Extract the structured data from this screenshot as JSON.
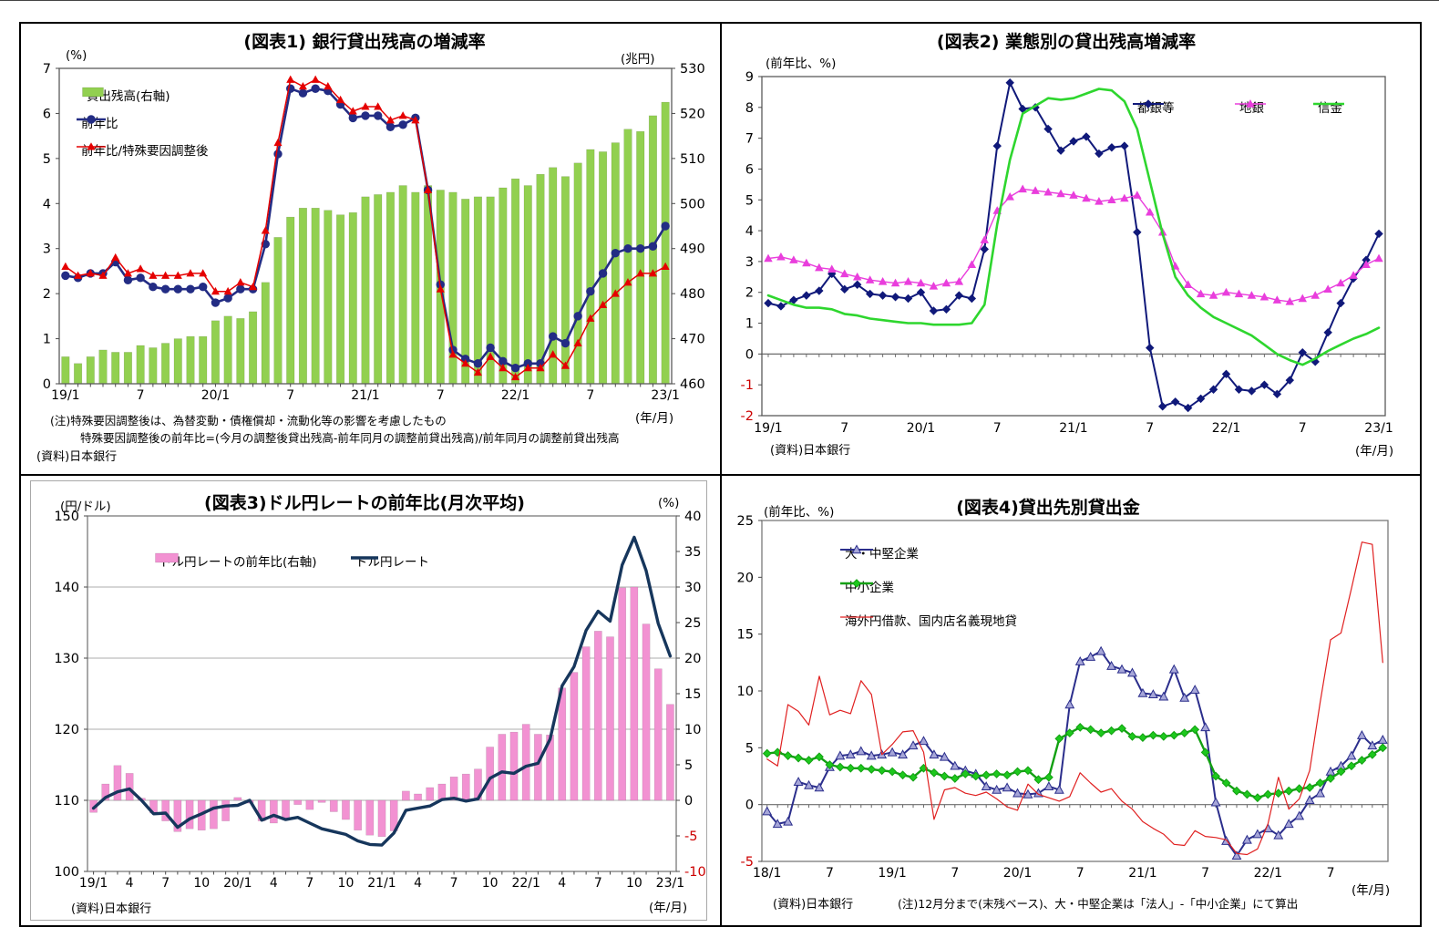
{
  "source_label": "(資料)日本銀行",
  "x_unit_label": "(年/月)",
  "colors": {
    "negative_tick": "#CC0000",
    "frame": "#6A6A6A",
    "gridline": "#ADADAD"
  },
  "chart_data": [
    {
      "id": "fig1",
      "type": "bar+line",
      "title": "(図表1) 銀行貸出残高の増減率",
      "unit_left": "(%)",
      "unit_right": "(兆円)",
      "x_unit": "(年/月)",
      "source": "(資料)日本銀行",
      "notes": [
        "(注)特殊要因調整後は、為替変動・債権償却・流動化等の影響を考慮したもの",
        "特殊要因調整後の前年比=(今月の調整後貸出残高-前年同月の調整前貸出残高)/前年同月の調整前貸出残高"
      ],
      "axis_left": {
        "min": 0,
        "max": 7,
        "step": 1
      },
      "axis_right": {
        "min": 460,
        "max": 530,
        "step": 10
      },
      "x_ticks": [
        {
          "i": 0,
          "label": "19/1"
        },
        {
          "i": 6,
          "label": "7"
        },
        {
          "i": 12,
          "label": "20/1"
        },
        {
          "i": 18,
          "label": "7"
        },
        {
          "i": 24,
          "label": "21/1"
        },
        {
          "i": 30,
          "label": "7"
        },
        {
          "i": 36,
          "label": "22/1"
        },
        {
          "i": 42,
          "label": "7"
        },
        {
          "i": 48,
          "label": "23/1"
        }
      ],
      "bars": {
        "name": "貸出残高(右軸)",
        "color": "#92D050",
        "axis": "right",
        "values": [
          466,
          464.5,
          466,
          467.5,
          467,
          467,
          468.5,
          468,
          469,
          470,
          470.5,
          470.5,
          474,
          475,
          474.5,
          476,
          482.5,
          492.5,
          497,
          499,
          499,
          498.5,
          497.5,
          498,
          501.5,
          502,
          502.5,
          504,
          502.5,
          504,
          503,
          502.5,
          501,
          501.5,
          501.5,
          503.5,
          505.5,
          504,
          506.5,
          508,
          506,
          509,
          512,
          511.5,
          513.5,
          516.5,
          516,
          519.5,
          522.5
        ]
      },
      "series": [
        {
          "name": "前年比",
          "color": "#232C84",
          "marker": "circle",
          "lw": 2.6,
          "msize": 4.2,
          "axis": "left",
          "values": [
            2.4,
            2.35,
            2.45,
            2.45,
            2.7,
            2.3,
            2.35,
            2.15,
            2.1,
            2.1,
            2.1,
            2.15,
            1.8,
            1.9,
            2.1,
            2.1,
            3.1,
            5.1,
            6.55,
            6.45,
            6.55,
            6.5,
            6.2,
            5.9,
            5.95,
            5.95,
            5.7,
            5.75,
            5.9,
            4.3,
            2.2,
            0.75,
            0.55,
            0.45,
            0.8,
            0.5,
            0.35,
            0.45,
            0.45,
            1.05,
            0.9,
            1.5,
            2.05,
            2.45,
            2.9,
            3.0,
            3.0,
            3.05,
            3.5
          ]
        },
        {
          "name": "前年比/特殊要因調整後",
          "color": "#E50000",
          "marker": "triangle",
          "lw": 1.5,
          "msize": 3.7,
          "axis": "left",
          "values": [
            2.6,
            2.4,
            2.45,
            2.4,
            2.8,
            2.45,
            2.55,
            2.4,
            2.4,
            2.4,
            2.45,
            2.45,
            2.05,
            2.05,
            2.25,
            2.15,
            3.4,
            5.35,
            6.75,
            6.6,
            6.75,
            6.6,
            6.3,
            6.05,
            6.15,
            6.15,
            5.85,
            5.95,
            5.85,
            4.3,
            2.1,
            0.65,
            0.45,
            0.25,
            0.6,
            0.35,
            0.15,
            0.35,
            0.35,
            0.65,
            0.4,
            0.9,
            1.45,
            1.75,
            2.0,
            2.25,
            2.45,
            2.45,
            2.6
          ]
        }
      ]
    },
    {
      "id": "fig2",
      "type": "line",
      "title": "(図表2) 業態別の貸出残高増減率",
      "unit_left": "(前年比、%)",
      "x_unit": "(年/月)",
      "source": "(資料)日本銀行",
      "axis_left": {
        "min": -2,
        "max": 9,
        "step": 1
      },
      "zero_line": true,
      "x_ticks": [
        {
          "i": 0,
          "label": "19/1"
        },
        {
          "i": 6,
          "label": "7"
        },
        {
          "i": 12,
          "label": "20/1"
        },
        {
          "i": 18,
          "label": "7"
        },
        {
          "i": 24,
          "label": "21/1"
        },
        {
          "i": 30,
          "label": "7"
        },
        {
          "i": 36,
          "label": "22/1"
        },
        {
          "i": 42,
          "label": "7"
        },
        {
          "i": 48,
          "label": "23/1"
        }
      ],
      "series": [
        {
          "name": "都銀等",
          "color": "#10197A",
          "marker": "diamond",
          "lw": 2.0,
          "msize": 4.0,
          "axis": "left",
          "values": [
            1.65,
            1.55,
            1.75,
            1.9,
            2.05,
            2.6,
            2.1,
            2.25,
            1.95,
            1.9,
            1.85,
            1.8,
            2.0,
            1.4,
            1.45,
            1.9,
            1.8,
            3.4,
            6.75,
            8.8,
            7.95,
            8.0,
            7.3,
            6.6,
            6.9,
            7.05,
            6.5,
            6.7,
            6.75,
            3.95,
            0.2,
            -1.7,
            -1.55,
            -1.75,
            -1.45,
            -1.15,
            -0.65,
            -1.15,
            -1.2,
            -1.0,
            -1.3,
            -0.85,
            0.05,
            -0.25,
            0.7,
            1.65,
            2.45,
            3.05,
            3.9
          ]
        },
        {
          "name": "地銀",
          "color": "#E93EDC",
          "marker": "triangle",
          "lw": 1.4,
          "msize": 3.9,
          "axis": "left",
          "values": [
            3.1,
            3.15,
            3.05,
            2.95,
            2.8,
            2.75,
            2.6,
            2.5,
            2.4,
            2.35,
            2.3,
            2.35,
            2.3,
            2.2,
            2.3,
            2.35,
            2.9,
            3.7,
            4.65,
            5.1,
            5.35,
            5.3,
            5.25,
            5.2,
            5.15,
            5.05,
            4.95,
            5.0,
            5.05,
            5.15,
            4.6,
            3.95,
            2.85,
            2.25,
            1.95,
            1.9,
            2.0,
            1.95,
            1.9,
            1.85,
            1.75,
            1.7,
            1.8,
            1.9,
            2.1,
            2.3,
            2.55,
            2.9,
            3.1
          ]
        },
        {
          "name": "信金",
          "color": "#2ED62E",
          "marker": "none",
          "lw": 2.6,
          "axis": "left",
          "values": [
            1.9,
            1.75,
            1.6,
            1.5,
            1.5,
            1.45,
            1.3,
            1.25,
            1.15,
            1.1,
            1.05,
            1.0,
            1.0,
            0.95,
            0.95,
            0.95,
            1.0,
            1.6,
            4.2,
            6.3,
            7.8,
            8.05,
            8.3,
            8.25,
            8.3,
            8.45,
            8.6,
            8.55,
            8.2,
            7.3,
            5.6,
            3.9,
            2.5,
            1.9,
            1.5,
            1.2,
            1.0,
            0.8,
            0.6,
            0.3,
            0.0,
            -0.2,
            -0.35,
            -0.15,
            0.1,
            0.3,
            0.5,
            0.65,
            0.85
          ]
        }
      ]
    },
    {
      "id": "fig3",
      "type": "bar+line",
      "title": "(図表3)ドル円レートの前年比(月次平均)",
      "unit_left": "(円/ドル)",
      "unit_right": "(%)",
      "x_unit": "(年/月)",
      "source": "(資料)日本銀行",
      "axis_left": {
        "min": 100,
        "max": 150,
        "step": 10
      },
      "axis_right": {
        "min": -10,
        "max": 40,
        "step": 5
      },
      "gridlines": [
        110,
        120,
        130,
        140
      ],
      "x_ticks": [
        {
          "i": 0,
          "label": "19/1"
        },
        {
          "i": 3,
          "label": "4"
        },
        {
          "i": 6,
          "label": "7"
        },
        {
          "i": 9,
          "label": "10"
        },
        {
          "i": 12,
          "label": "20/1"
        },
        {
          "i": 15,
          "label": "4"
        },
        {
          "i": 18,
          "label": "7"
        },
        {
          "i": 21,
          "label": "10"
        },
        {
          "i": 24,
          "label": "21/1"
        },
        {
          "i": 27,
          "label": "4"
        },
        {
          "i": 30,
          "label": "7"
        },
        {
          "i": 33,
          "label": "10"
        },
        {
          "i": 36,
          "label": "22/1"
        },
        {
          "i": 39,
          "label": "4"
        },
        {
          "i": 42,
          "label": "7"
        },
        {
          "i": 45,
          "label": "10"
        },
        {
          "i": 48,
          "label": "23/1"
        }
      ],
      "bars": {
        "name": "ドル円レートの前年比(右軸)",
        "color": "#F292D2",
        "axis": "right",
        "base": 0,
        "values": [
          -1.7,
          2.3,
          4.9,
          3.8,
          0.3,
          -1.8,
          -2.9,
          -4.4,
          -4.0,
          -4.2,
          -4.0,
          -2.9,
          0.4,
          -0.4,
          -2.9,
          -3.2,
          -2.5,
          -0.6,
          -1.3,
          -0.3,
          -1.6,
          -2.7,
          -4.2,
          -4.9,
          -5.1,
          -4.3,
          1.3,
          0.9,
          1.8,
          2.3,
          3.3,
          3.7,
          4.4,
          7.5,
          9.3,
          9.6,
          10.7,
          9.3,
          9.2,
          15.8,
          18.0,
          21.6,
          23.8,
          23.0,
          29.9,
          30.0,
          24.8,
          18.5,
          13.5
        ]
      },
      "series": [
        {
          "name": "ドル円レート",
          "color": "#16365C",
          "marker": "none",
          "lw": 3.4,
          "axis": "left",
          "values": [
            108.9,
            110.4,
            111.2,
            111.6,
            110.0,
            108.1,
            108.2,
            106.2,
            107.4,
            108.1,
            108.9,
            109.2,
            109.3,
            110.0,
            107.2,
            107.9,
            107.3,
            107.6,
            106.8,
            106.0,
            105.6,
            105.2,
            104.3,
            103.8,
            103.7,
            105.4,
            108.6,
            108.9,
            109.2,
            110.1,
            110.3,
            109.9,
            110.2,
            113.1,
            114.0,
            113.8,
            114.8,
            115.2,
            118.6,
            126.1,
            128.8,
            133.9,
            136.6,
            135.2,
            143.1,
            147.0,
            142.3,
            134.9,
            130.3
          ]
        }
      ]
    },
    {
      "id": "fig4",
      "type": "line",
      "title": "(図表4)貸出先別貸出金",
      "unit_left": "(前年比、%)",
      "x_unit": "(年/月)",
      "source": "(資料)日本銀行",
      "notes": [
        "(注)12月分まで(末残ベース)、大・中堅企業は「法人」-「中小企業」にて算出"
      ],
      "axis_left": {
        "min": -5,
        "max": 25,
        "step": 5
      },
      "zero_line": true,
      "x_ticks": [
        {
          "i": 0,
          "label": "18/1"
        },
        {
          "i": 6,
          "label": "7"
        },
        {
          "i": 12,
          "label": "19/1"
        },
        {
          "i": 18,
          "label": "7"
        },
        {
          "i": 24,
          "label": "20/1"
        },
        {
          "i": 30,
          "label": "7"
        },
        {
          "i": 36,
          "label": "21/1"
        },
        {
          "i": 42,
          "label": "7"
        },
        {
          "i": 48,
          "label": "22/1"
        },
        {
          "i": 54,
          "label": "7"
        }
      ],
      "series": [
        {
          "name": "大・中堅企業",
          "color": "#2B2E8C",
          "marker": "triangle",
          "fill": "#A6A6D8",
          "lw": 2.0,
          "msize": 4.6,
          "axis": "left",
          "values": [
            -0.6,
            -1.7,
            -1.5,
            2.0,
            1.7,
            1.5,
            3.3,
            4.3,
            4.4,
            4.7,
            4.3,
            4.4,
            4.6,
            4.4,
            5.2,
            5.6,
            4.4,
            4.2,
            3.4,
            3.0,
            2.7,
            1.6,
            1.3,
            1.5,
            1.0,
            0.9,
            1.0,
            1.6,
            1.3,
            8.8,
            12.6,
            13.0,
            13.5,
            12.2,
            11.9,
            11.6,
            9.8,
            9.7,
            9.5,
            11.9,
            9.4,
            10.1,
            6.8,
            0.2,
            -3.2,
            -4.5,
            -3.1,
            -2.6,
            -2.1,
            -2.7,
            -1.7,
            -1.0,
            0.4,
            1.0,
            2.9,
            3.4,
            4.3,
            6.1,
            5.2,
            5.7
          ]
        },
        {
          "name": "中小企業",
          "color": "#12A012",
          "marker": "diamond",
          "fill": "#1DC81D",
          "lw": 2.4,
          "msize": 4.2,
          "axis": "left",
          "values": [
            4.5,
            4.6,
            4.3,
            4.1,
            3.9,
            4.2,
            3.5,
            3.3,
            3.2,
            3.2,
            3.1,
            3.0,
            2.9,
            2.6,
            2.4,
            3.2,
            2.8,
            2.5,
            2.3,
            2.7,
            2.5,
            2.6,
            2.7,
            2.6,
            2.9,
            3.0,
            2.2,
            2.4,
            5.8,
            6.3,
            6.8,
            6.6,
            6.3,
            6.5,
            6.7,
            6.0,
            5.9,
            6.1,
            6.0,
            6.1,
            6.3,
            6.6,
            4.6,
            2.5,
            1.9,
            1.2,
            0.9,
            0.6,
            0.9,
            1.0,
            1.2,
            1.4,
            1.5,
            1.9,
            2.3,
            2.9,
            3.4,
            3.9,
            4.4,
            5.0
          ]
        },
        {
          "name": "海外円借款、国内店名義現地貸",
          "color": "#E02020",
          "marker": "none",
          "lw": 1.2,
          "axis": "left",
          "values": [
            4.0,
            3.4,
            8.8,
            8.2,
            7.0,
            11.3,
            7.9,
            8.3,
            8.0,
            10.9,
            9.7,
            4.4,
            5.3,
            6.4,
            6.5,
            4.6,
            -1.3,
            1.3,
            1.5,
            1.0,
            0.8,
            1.1,
            0.5,
            -0.2,
            -0.5,
            1.8,
            0.9,
            0.6,
            0.3,
            0.7,
            2.8,
            1.9,
            1.1,
            1.4,
            0.3,
            -0.4,
            -1.5,
            -2.1,
            -2.6,
            -3.5,
            -3.6,
            -2.3,
            -2.8,
            -2.9,
            -3.1,
            -4.3,
            -4.4,
            -3.9,
            -1.7,
            2.4,
            -0.4,
            0.5,
            3.0,
            9.0,
            14.5,
            15.1,
            19.0,
            23.1,
            22.9,
            12.5
          ]
        }
      ]
    }
  ]
}
